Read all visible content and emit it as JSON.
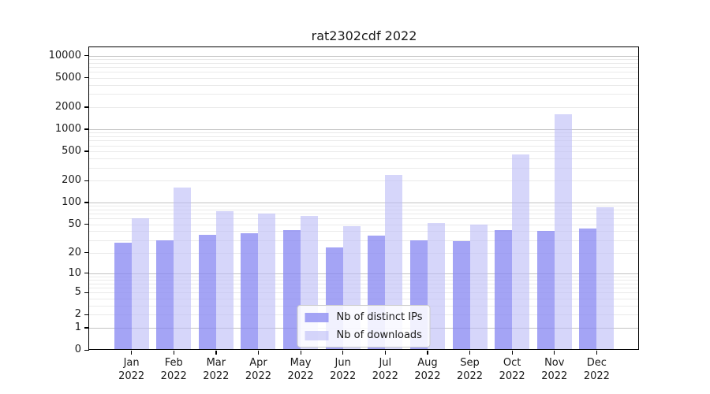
{
  "figure": {
    "background": "#ffffff"
  },
  "chart_data": {
    "type": "bar",
    "title": "rat2302cdf 2022",
    "categories": [
      "Jan 2022",
      "Feb 2022",
      "Mar 2022",
      "Apr 2022",
      "May 2022",
      "Jun 2022",
      "Jul 2022",
      "Aug 2022",
      "Sep 2022",
      "Oct 2022",
      "Nov 2022",
      "Dec 2022"
    ],
    "series": [
      {
        "name": "Nb of distinct IPs",
        "color": "rgba(133,133,242,0.75)",
        "color_hex": "#a7a7f7",
        "values": [
          28,
          30,
          36,
          38,
          42,
          24,
          35,
          30,
          29,
          42,
          40,
          44
        ]
      },
      {
        "name": "Nb of downloads",
        "color": "rgba(187,187,247,0.60)",
        "color_hex": "#d9d9fa",
        "values": [
          60,
          160,
          75,
          70,
          65,
          47,
          240,
          52,
          50,
          450,
          1600,
          85
        ]
      }
    ],
    "yscale": "log1p",
    "ylim": [
      0,
      13000
    ],
    "yticks": [
      0,
      1,
      2,
      5,
      10,
      20,
      50,
      100,
      200,
      500,
      1000,
      2000,
      5000,
      10000
    ],
    "grid": {
      "show": true,
      "major_color": "#c3c3c3",
      "minor_color": "#eaeaea"
    },
    "legend": {
      "position": "lower center"
    },
    "axis_color": "#000000",
    "text_color": "#1a1a1a"
  }
}
